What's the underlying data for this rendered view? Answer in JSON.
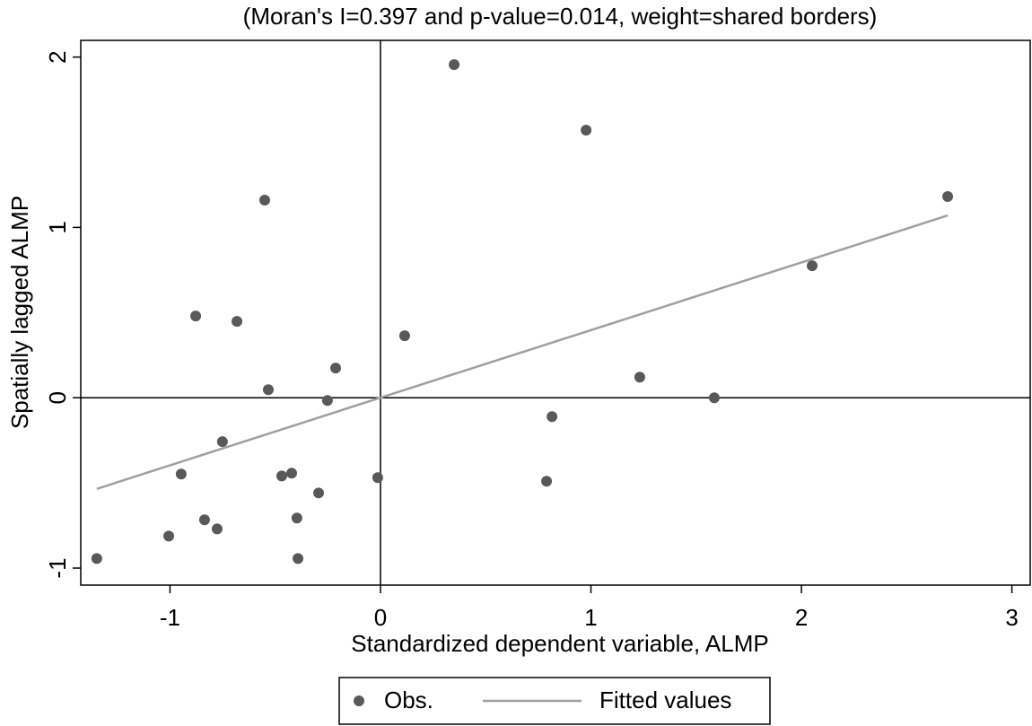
{
  "chart_data": {
    "type": "scatter",
    "title": "(Moran's I=0.397 and p-value=0.014, weight=shared borders)",
    "x_label": "Standardized dependent variable, ALMP",
    "y_label": "Spatially lagged ALMP",
    "xlim": [
      -1.424,
      3.087
    ],
    "xticks": [
      -1,
      0,
      1,
      2,
      3
    ],
    "ylim": [
      -1.1,
      2.098
    ],
    "yticks": [
      -1,
      0,
      1,
      2
    ],
    "reference_lines": {
      "x": 0,
      "y": 0
    },
    "series": [
      {
        "name": "Obs.",
        "type": "scatter",
        "color": "#595959",
        "x": [
          -1.348,
          -1.006,
          -0.947,
          -0.878,
          -0.836,
          -0.776,
          -0.751,
          -0.682,
          -0.55,
          -0.533,
          -0.469,
          -0.422,
          -0.397,
          -0.392,
          -0.294,
          -0.252,
          -0.213,
          -0.013,
          0.115,
          0.35,
          0.789,
          0.815,
          0.977,
          1.232,
          1.586,
          2.051,
          2.695
        ],
        "values": [
          -0.944,
          -0.812,
          -0.448,
          0.48,
          -0.717,
          -0.77,
          -0.258,
          0.448,
          1.16,
          0.047,
          -0.459,
          -0.443,
          -0.706,
          -0.944,
          -0.559,
          -0.016,
          0.174,
          -0.469,
          0.364,
          1.956,
          -0.49,
          -0.111,
          1.571,
          0.121,
          0,
          0.775,
          1.181
        ]
      },
      {
        "name": "Fitted values",
        "type": "line",
        "color": "#a0a0a0",
        "x": [
          -1.348,
          2.695
        ],
        "values": [
          -0.535,
          1.07
        ]
      }
    ]
  }
}
